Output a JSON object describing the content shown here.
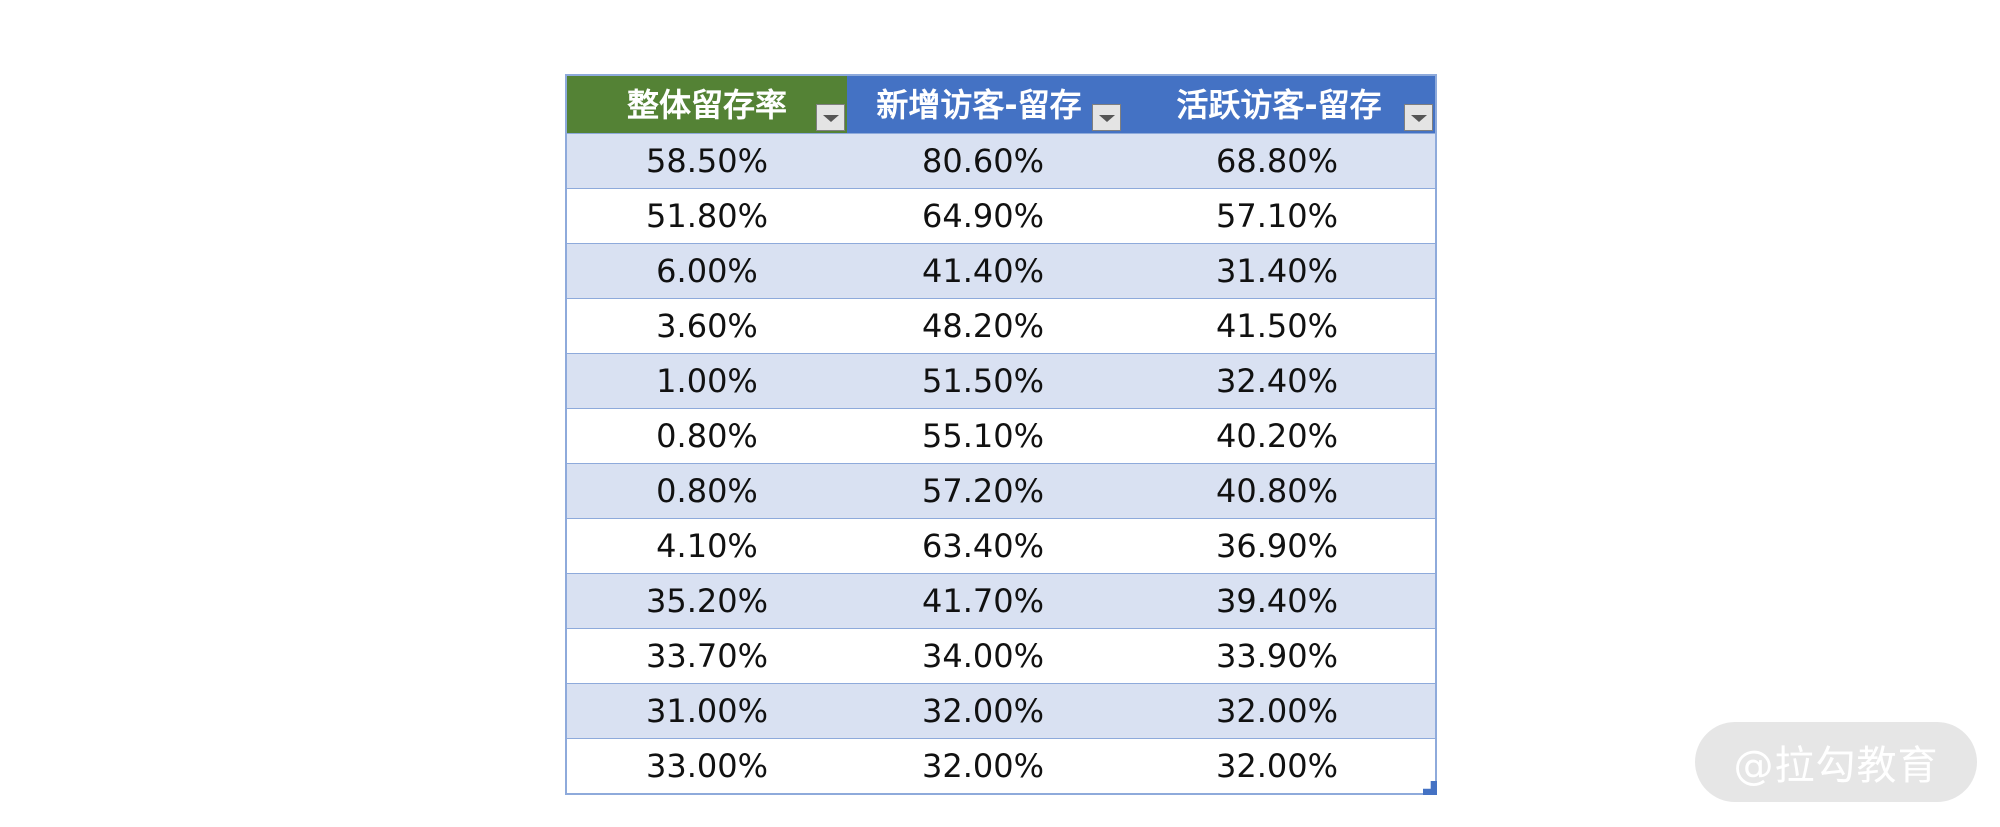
{
  "table": {
    "headers": [
      "整体留存率",
      "新增访客-留存",
      "活跃访客-留存"
    ],
    "rows": [
      [
        "58.50%",
        "80.60%",
        "68.80%"
      ],
      [
        "51.80%",
        "64.90%",
        "57.10%"
      ],
      [
        "6.00%",
        "41.40%",
        "31.40%"
      ],
      [
        "3.60%",
        "48.20%",
        "41.50%"
      ],
      [
        "1.00%",
        "51.50%",
        "32.40%"
      ],
      [
        "0.80%",
        "55.10%",
        "40.20%"
      ],
      [
        "0.80%",
        "57.20%",
        "40.80%"
      ],
      [
        "4.10%",
        "63.40%",
        "36.90%"
      ],
      [
        "35.20%",
        "41.70%",
        "39.40%"
      ],
      [
        "33.70%",
        "34.00%",
        "33.90%"
      ],
      [
        "31.00%",
        "32.00%",
        "32.00%"
      ],
      [
        "33.00%",
        "32.00%",
        "32.00%"
      ]
    ],
    "header_colors": [
      "#548235",
      "#4472c4",
      "#4472c4"
    ],
    "band_color": "#d9e1f2",
    "border_color": "#8eaadb"
  },
  "icons": {
    "filter": "dropdown-arrow-icon",
    "resize": "resize-handle-icon"
  },
  "watermark": {
    "text": "@拉勾教育"
  }
}
